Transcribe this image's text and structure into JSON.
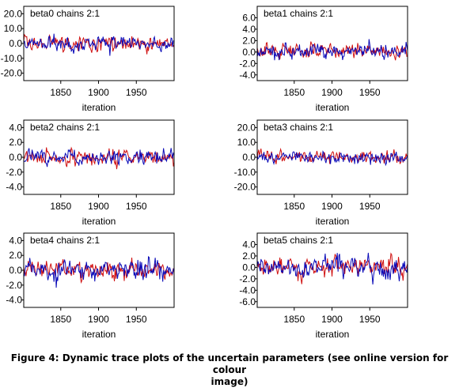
{
  "caption": {
    "line1": "Figure 4: Dynamic trace plots of the uncertain parameters (see online version for colour",
    "line2": "image)"
  },
  "series_colors": {
    "chain1": "#d01010",
    "chain2": "#0a0ab8"
  },
  "chart_data": [
    {
      "type": "line",
      "title": "beta0 chains 2:1",
      "xlabel": "iteration",
      "ylabel": "",
      "xlim": [
        1801,
        2000
      ],
      "xticks": [
        1850,
        1900,
        1950
      ],
      "ylim": [
        -25,
        25
      ],
      "yticks": [
        20.0,
        10.0,
        0.0,
        -10.0,
        -20.0
      ],
      "y_tick_labels": [
        "20.0",
        "10.0",
        "0.0",
        "-10.0",
        "-20.0"
      ],
      "grid": false,
      "chains": 2,
      "center": 0,
      "spread": 2.4
    },
    {
      "type": "line",
      "title": "beta1 chains 2:1",
      "xlabel": "iteration",
      "ylabel": "",
      "xlim": [
        1801,
        2000
      ],
      "xticks": [
        1850,
        1900,
        1950
      ],
      "ylim": [
        -5,
        8
      ],
      "yticks": [
        6.0,
        4.0,
        2.0,
        0.0,
        -2.0,
        -4.0
      ],
      "y_tick_labels": [
        "6.0",
        "4.0",
        "2.0",
        "0.0",
        "-2.0",
        "-4.0"
      ],
      "grid": false,
      "chains": 2,
      "center": 0.3,
      "spread": 0.6
    },
    {
      "type": "line",
      "title": "beta2 chains 2:1",
      "xlabel": "iteration",
      "ylabel": "",
      "xlim": [
        1801,
        2000
      ],
      "xticks": [
        1850,
        1900,
        1950
      ],
      "ylim": [
        -5,
        5
      ],
      "yticks": [
        4.0,
        2.0,
        0.0,
        -2.0,
        -4.0
      ],
      "y_tick_labels": [
        "4.0",
        "2.0",
        "0.0",
        "-2.0",
        "-4.0"
      ],
      "grid": false,
      "chains": 2,
      "center": 0,
      "spread": 0.5
    },
    {
      "type": "line",
      "title": "beta3 chains 2:1",
      "xlabel": "iteration",
      "ylabel": "",
      "xlim": [
        1801,
        2000
      ],
      "xticks": [
        1850,
        1900,
        1950
      ],
      "ylim": [
        -25,
        25
      ],
      "yticks": [
        20.0,
        10.0,
        0.0,
        -10.0,
        -20.0
      ],
      "y_tick_labels": [
        "20.0",
        "10.0",
        "0.0",
        "-10.0",
        "-20.0"
      ],
      "grid": false,
      "chains": 2,
      "center": 0,
      "spread": 2.0
    },
    {
      "type": "line",
      "title": "beta4 chains 2:1",
      "xlabel": "iteration",
      "ylabel": "",
      "xlim": [
        1801,
        2000
      ],
      "xticks": [
        1850,
        1900,
        1950
      ],
      "ylim": [
        -5,
        5
      ],
      "yticks": [
        4.0,
        2.0,
        0.0,
        -2.0,
        -4.0
      ],
      "y_tick_labels": [
        "4.0",
        "2.0",
        "0.0",
        "-2.0",
        "-4.0"
      ],
      "grid": false,
      "chains": 2,
      "center": 0,
      "spread": 0.6
    },
    {
      "type": "line",
      "title": "beta5 chains 2:1",
      "xlabel": "iteration",
      "ylabel": "",
      "xlim": [
        1801,
        2000
      ],
      "xticks": [
        1850,
        1900,
        1950
      ],
      "ylim": [
        -7,
        6
      ],
      "yticks": [
        4.0,
        2.0,
        0.0,
        -2.0,
        -4.0,
        -6.0
      ],
      "y_tick_labels": [
        "4.0",
        "2.0",
        "0.0",
        "-2.0",
        "-4.0",
        "-6.0"
      ],
      "grid": false,
      "chains": 2,
      "center": 0,
      "spread": 0.8
    }
  ]
}
